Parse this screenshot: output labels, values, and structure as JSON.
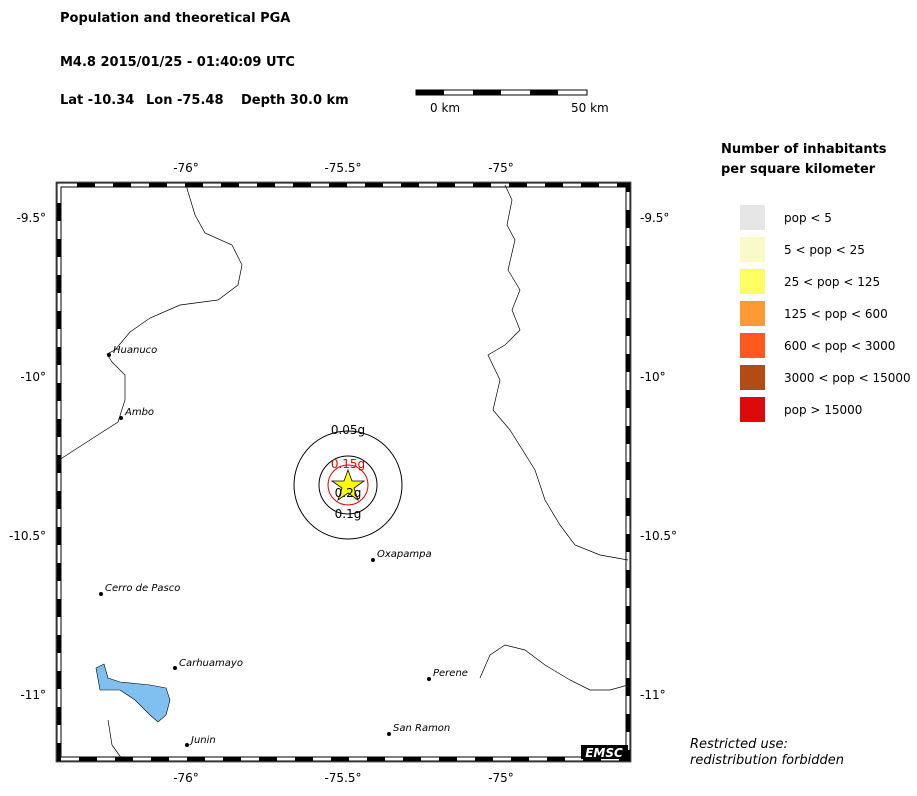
{
  "header": {
    "title": "Population and theoretical PGA",
    "event": "M4.8  2015/01/25 - 01:40:09 UTC",
    "lat": "Lat -10.34",
    "lon": "Lon -75.48",
    "depth": "Depth  30.0 km"
  },
  "scale_bar": {
    "start": "0 km",
    "end": "50 km"
  },
  "axes": {
    "longitudes": [
      "-76°",
      "-75.5°",
      "-75°"
    ],
    "latitudes": [
      "-9.5°",
      "-10°",
      "-10.5°",
      "-11°"
    ]
  },
  "cities": [
    "Huanuco",
    "Ambo",
    "Cerro de Pasco",
    "Carhuamayo",
    "Junin",
    "Oxapampa",
    "Perene",
    "San Ramon"
  ],
  "pga_labels": [
    "0.05g",
    "0.15g",
    "0.2g",
    "0.1g"
  ],
  "legend": {
    "title": [
      "Number of inhabitants",
      "per square kilometer"
    ],
    "items": [
      {
        "label": "pop < 5",
        "color": "#e6e6e6"
      },
      {
        "label": "5 < pop < 25",
        "color": "#fafac8"
      },
      {
        "label": "25 < pop < 125",
        "color": "#ffff64"
      },
      {
        "label": "125 < pop < 600",
        "color": "#ff9933"
      },
      {
        "label": "600 < pop < 3000",
        "color": "#ff5a1e"
      },
      {
        "label": "3000 < pop < 15000",
        "color": "#b44a14"
      },
      {
        "label": "pop > 15000",
        "color": "#dc0a0a"
      }
    ]
  },
  "logo": "EMSC",
  "footer": [
    "Restricted use:",
    "redistribution forbidden"
  ]
}
